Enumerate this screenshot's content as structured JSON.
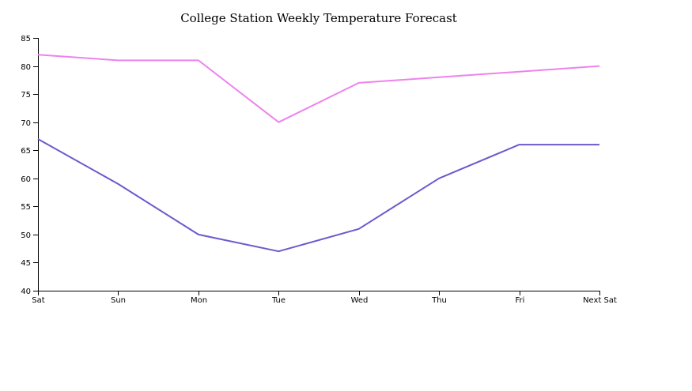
{
  "chart_data": {
    "type": "line",
    "title": "College Station Weekly Temperature Forecast",
    "categories": [
      "Sat",
      "Sun",
      "Mon",
      "Tue",
      "Wed",
      "Thu",
      "Fri",
      "Next Sat"
    ],
    "series": [
      {
        "values": [
          82,
          81,
          81,
          70,
          77,
          78,
          79,
          80
        ],
        "color": "#ee82ee"
      },
      {
        "values": [
          67,
          59,
          50,
          47,
          51,
          60,
          66,
          66
        ],
        "color": "#6a5acd"
      }
    ],
    "ylim": [
      40,
      85
    ],
    "yticks": [
      40,
      45,
      50,
      55,
      60,
      65,
      70,
      75,
      80,
      85
    ],
    "xlabel": "",
    "ylabel": "",
    "grid": false,
    "legend": "none"
  }
}
